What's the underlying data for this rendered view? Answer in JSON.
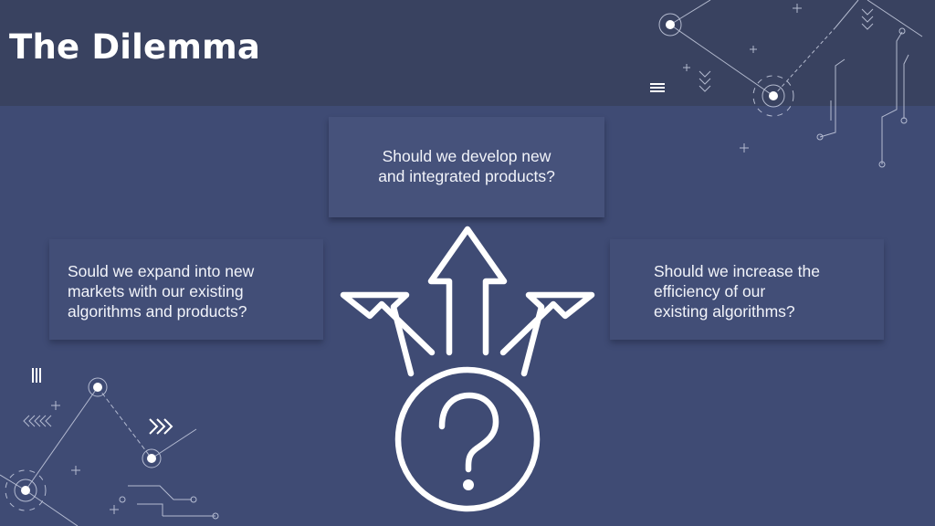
{
  "slide": {
    "title": "The Dilemma",
    "questions": {
      "top": [
        "Should we develop new",
        "and integrated products?"
      ],
      "left": [
        "Sould we expand into new",
        "markets with our existing",
        "algorithms and products?"
      ],
      "right": [
        "Should we increase the",
        "efficiency of our",
        "existing algorithms?"
      ]
    }
  },
  "colors": {
    "background": "#3f4b74",
    "header": "#394260",
    "box": "#46527b",
    "text": "#ffffff"
  },
  "icons": {
    "center": "question-with-arrows-icon",
    "circuit": "circuit-decoration-icon"
  }
}
